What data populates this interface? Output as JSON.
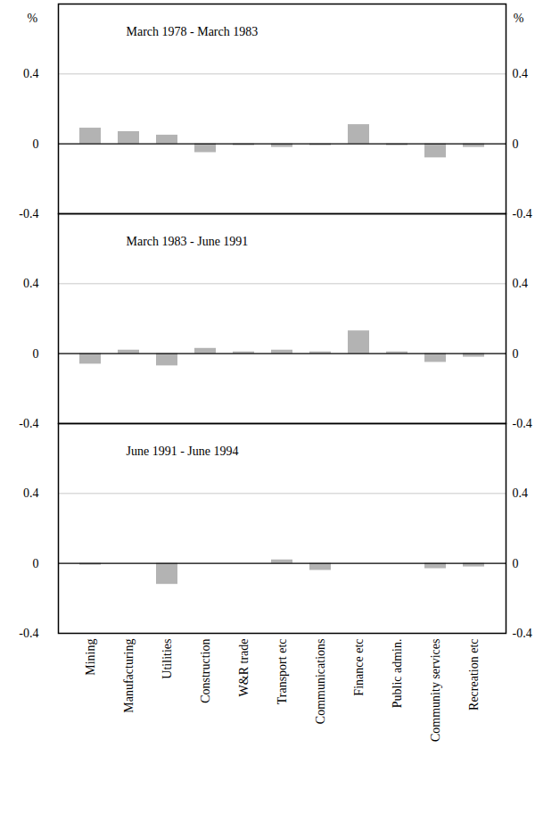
{
  "chart_data": [
    {
      "type": "bar",
      "title": "March 1978 - March 1983",
      "categories": [
        "Mining",
        "Manufacturing",
        "Utilities",
        "Construction",
        "W&R trade",
        "Transport etc",
        "Communications",
        "Finance etc",
        "Public admin.",
        "Community services",
        "Recreation etc"
      ],
      "values": [
        0.09,
        0.07,
        0.05,
        -0.05,
        -0.01,
        -0.02,
        -0.01,
        0.11,
        -0.01,
        -0.08,
        -0.02
      ],
      "color": "#b3b3b3",
      "y_label": "%",
      "ylim": [
        -0.4,
        0.8
      ],
      "yticks": [
        -0.4,
        0,
        0.4
      ],
      "grid": true,
      "tick_labels": "y"
    },
    {
      "type": "bar",
      "title": "March 1983 - June 1991",
      "categories": [
        "Mining",
        "Manufacturing",
        "Utilities",
        "Construction",
        "W&R trade",
        "Transport etc",
        "Communications",
        "Finance etc",
        "Public admin.",
        "Community services",
        "Recreation etc"
      ],
      "values": [
        -0.06,
        0.02,
        -0.07,
        0.03,
        0.01,
        0.02,
        0.01,
        0.13,
        0.01,
        -0.05,
        -0.02
      ],
      "color": "#b3b3b3",
      "ylim": [
        -0.4,
        0.8
      ],
      "yticks": [
        -0.4,
        0,
        0.4
      ],
      "grid": true,
      "tick_labels": "y"
    },
    {
      "type": "bar",
      "title": "June 1991 - June 1994",
      "categories": [
        "Mining",
        "Manufacturing",
        "Utilities",
        "Construction",
        "W&R trade",
        "Transport etc",
        "Communications",
        "Finance etc",
        "Public admin.",
        "Community services",
        "Recreation etc"
      ],
      "values": [
        -0.01,
        0.0,
        -0.12,
        0.0,
        0.0,
        0.02,
        -0.04,
        0.0,
        0.0,
        -0.03,
        -0.02
      ],
      "color": "#b3b3b3",
      "ylim": [
        -0.4,
        0.8
      ],
      "yticks": [
        -0.4,
        0,
        0.4
      ],
      "grid": true
    }
  ]
}
